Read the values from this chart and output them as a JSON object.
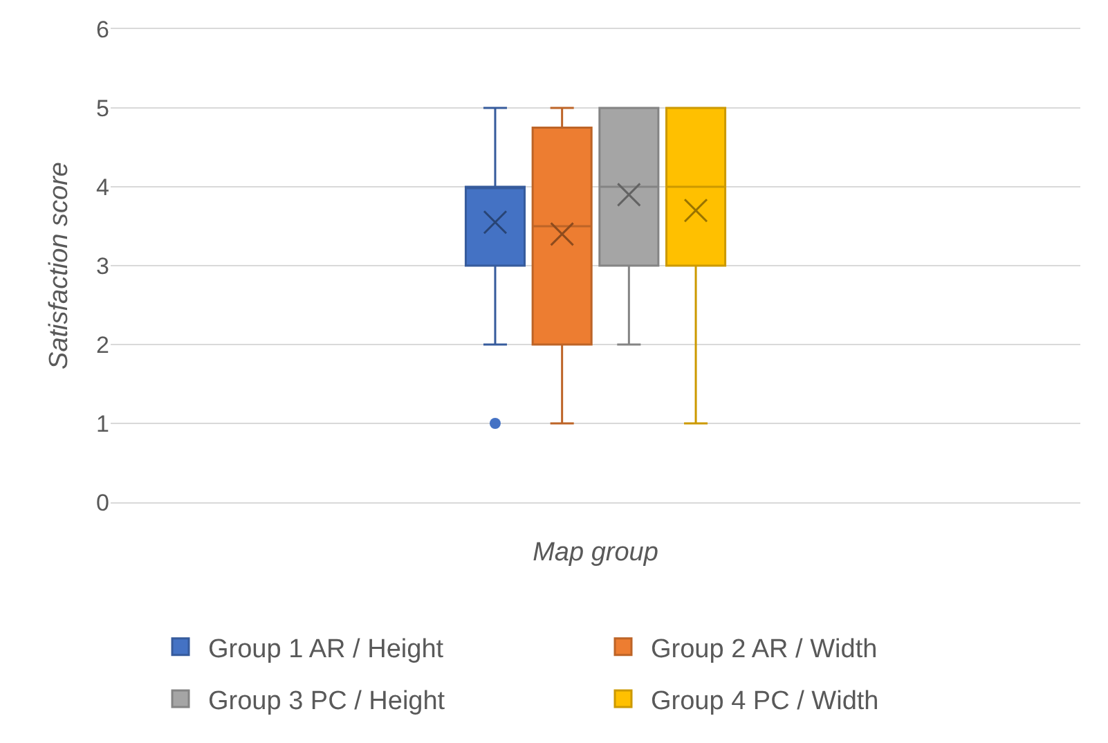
{
  "chart_data": {
    "type": "box",
    "xlabel": "Map group",
    "ylabel": "Satisfaction score",
    "categories": [
      null
    ],
    "ylim": [
      0,
      6
    ],
    "yticks": [
      0,
      1,
      2,
      3,
      4,
      5,
      6
    ],
    "grid": "y",
    "legend": "bottom",
    "marker": "cross",
    "series": [
      {
        "name": "Group 1 AR / Height",
        "color": "#4472c4",
        "boxes": [
          {
            "low": 2,
            "q1": 3,
            "median": 4,
            "q3": 4,
            "high": 5,
            "mean": 3.55,
            "outliers": [
              1
            ]
          }
        ]
      },
      {
        "name": "Group 2 AR / Width",
        "color": "#ed7d31",
        "boxes": [
          {
            "low": 1,
            "q1": 2,
            "median": 3.5,
            "q3": 4.75,
            "high": 5,
            "mean": 3.4
          }
        ]
      },
      {
        "name": "Group 3 PC / Height",
        "color": "#a5a5a5",
        "boxes": [
          {
            "low": 2,
            "q1": 3,
            "median": 4,
            "q3": 5,
            "high": 5,
            "mean": 3.9
          }
        ]
      },
      {
        "name": "Group 4 PC / Width",
        "color": "#ffc000",
        "boxes": [
          {
            "low": 1,
            "q1": 3,
            "median": 4,
            "q3": 5,
            "high": 5,
            "mean": 3.7
          }
        ]
      }
    ]
  }
}
